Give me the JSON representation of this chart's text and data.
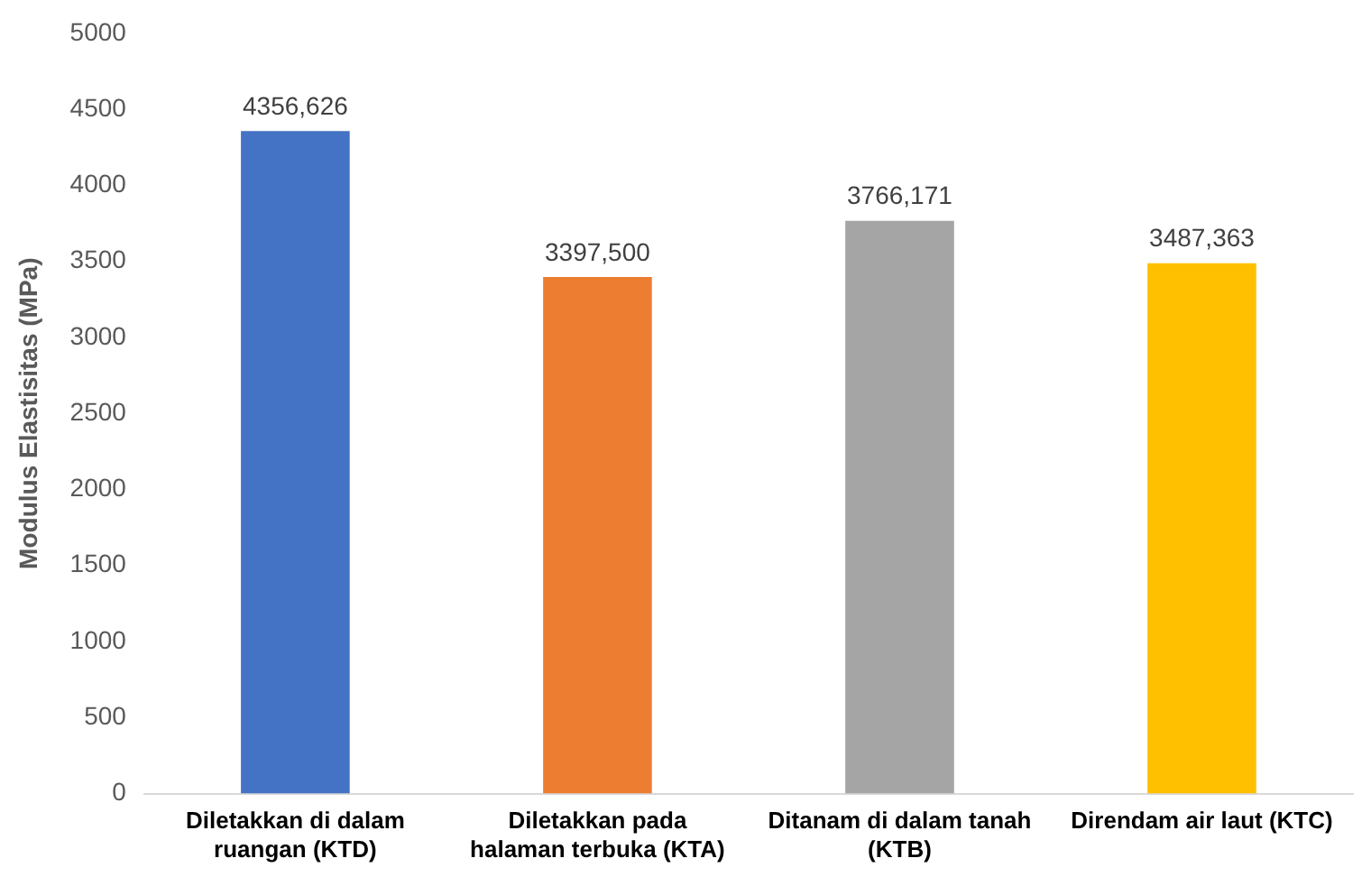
{
  "chart_data": {
    "type": "bar",
    "ylabel": "Modulus Elastisitas (MPa)",
    "categories": [
      "Diletakkan di dalam ruangan (KTD)",
      "Diletakkan pada halaman terbuka (KTA)",
      "Ditanam di dalam tanah (KTB)",
      "Direndam air laut (KTC)"
    ],
    "values": [
      4356.626,
      3397.5,
      3766.171,
      3487.363
    ],
    "value_labels": [
      "4356,626",
      "3397,500",
      "3766,171",
      "3487,363"
    ],
    "colors": [
      "#4472c4",
      "#ed7d31",
      "#a5a5a5",
      "#ffc000"
    ],
    "ylim": [
      0,
      5000
    ],
    "yticks": [
      0,
      500,
      1000,
      1500,
      2000,
      2500,
      3000,
      3500,
      4000,
      4500,
      5000
    ],
    "grid": false,
    "legend": false
  }
}
